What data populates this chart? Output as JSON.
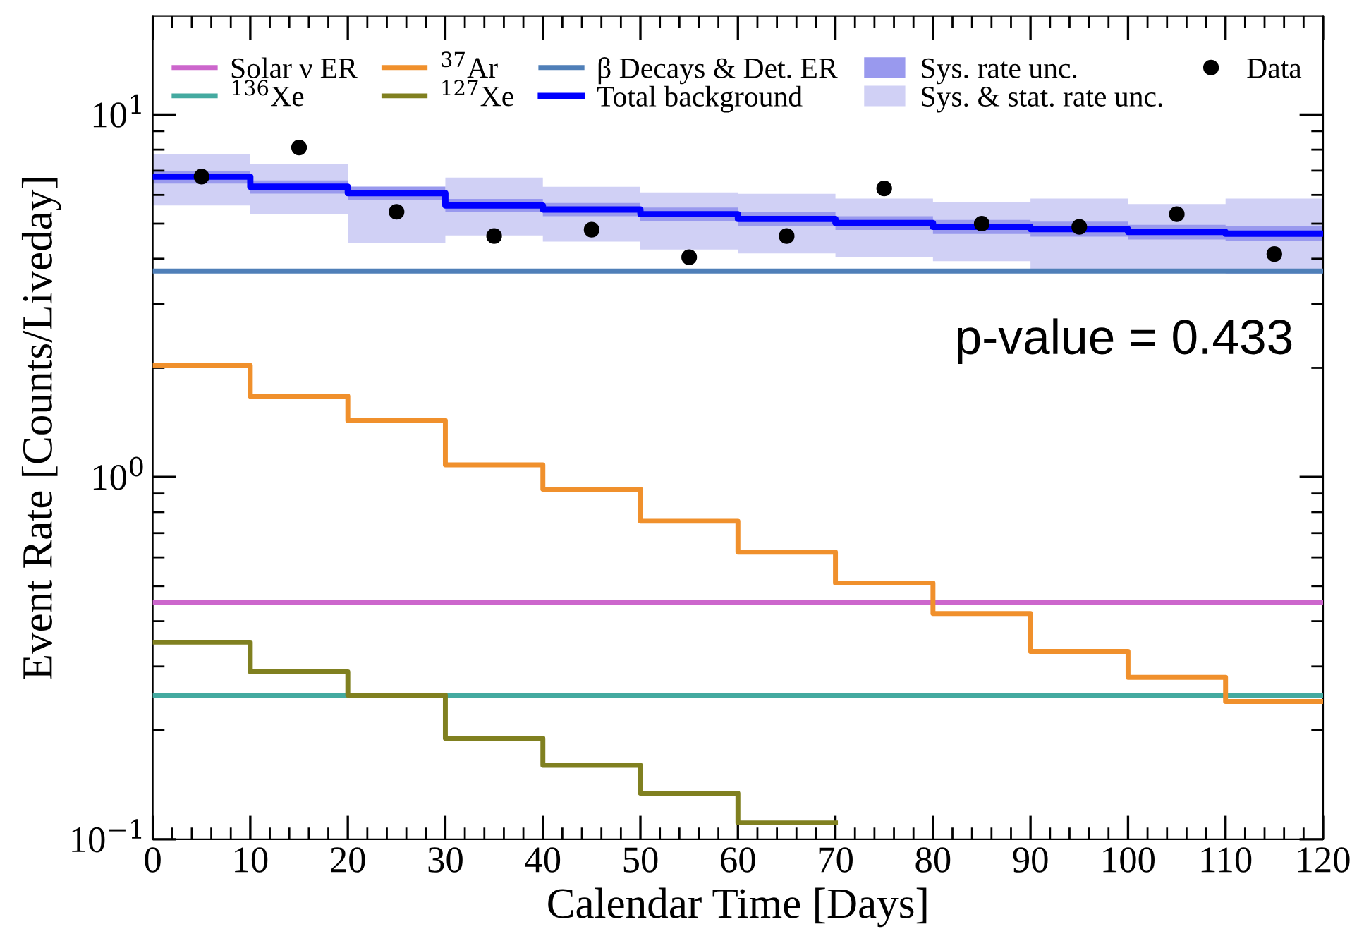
{
  "chart_data": {
    "type": "step",
    "xlabel": "Calendar Time [Days]",
    "ylabel": "Event Rate [Counts/Liveday]",
    "log": true,
    "xlim": [
      0,
      120
    ],
    "xticks": [
      0,
      10,
      20,
      30,
      40,
      50,
      60,
      70,
      80,
      90,
      100,
      110,
      120
    ],
    "ylim": [
      0.1,
      18.7
    ],
    "yticks": [
      {
        "value": 0.1,
        "label": "10$^{−1}$"
      },
      {
        "value": 1,
        "label": "10$^{0}$"
      },
      {
        "value": 10,
        "label": "10$^{1}$"
      }
    ],
    "legend": "top",
    "grid": false,
    "annotations": [
      "p-value = 0.433"
    ],
    "series": [
      {
        "name": "Solar ν ER",
        "type": "line",
        "color": "#cc66cc",
        "x": [
          0,
          120
        ],
        "values": [
          0.45,
          0.45
        ]
      },
      {
        "name": "$^{136}$Xe",
        "type": "line",
        "color": "#44aaa0",
        "x": [
          0,
          120
        ],
        "values": [
          0.25,
          0.25
        ]
      },
      {
        "name": "$^{37}$Ar",
        "type": "step",
        "color": "#f0902c",
        "x": [
          0,
          10,
          20,
          30,
          40,
          50,
          60,
          70,
          80,
          90,
          100,
          110,
          120
        ],
        "values": [
          2.03,
          1.67,
          1.43,
          1.08,
          0.925,
          0.755,
          0.62,
          0.51,
          0.42,
          0.33,
          0.28,
          0.24,
          0.24
        ]
      },
      {
        "name": "$^{127}$Xe",
        "type": "step",
        "color": "#808020",
        "x": [
          0,
          10,
          20,
          30,
          40,
          50,
          60,
          70
        ],
        "values": [
          0.35,
          0.29,
          0.25,
          0.19,
          0.16,
          0.134,
          0.111,
          0.111
        ]
      },
      {
        "name": "β Decays & Det. ER",
        "type": "line",
        "color": "#4f7fb8",
        "x": [
          0,
          120
        ],
        "values": [
          3.7,
          3.7
        ]
      },
      {
        "name": "Total background",
        "color": "#0000ff",
        "x": [
          0,
          10,
          20,
          30,
          40,
          50,
          60,
          70,
          80,
          90,
          100,
          110,
          120
        ],
        "values": [
          6.74,
          6.32,
          6.07,
          5.61,
          5.47,
          5.31,
          5.15,
          5.02,
          4.9,
          4.83,
          4.74,
          4.69,
          4.69
        ]
      },
      {
        "name": "Sys. rate unc.",
        "type": "step",
        "color": "#9999ee",
        "x": [
          0,
          10,
          20,
          30,
          40,
          50,
          60,
          70,
          80,
          90,
          100,
          110,
          120
        ],
        "values": [
          null,
          null,
          null,
          null,
          null,
          null,
          null,
          null,
          null,
          null,
          null,
          null,
          null
        ],
        "lower": [
          6.45,
          6.05,
          5.8,
          5.37,
          5.24,
          5.08,
          4.93,
          4.8,
          4.68,
          4.6,
          4.52,
          4.47,
          4.47
        ],
        "upper": [
          7.0,
          6.58,
          6.33,
          5.85,
          5.7,
          5.54,
          5.37,
          5.24,
          5.12,
          5.06,
          4.96,
          4.91,
          4.91
        ]
      },
      {
        "name": "Sys. & stat. rate unc.",
        "type": "step",
        "color": "#d0d0f5",
        "x": [
          0,
          10,
          20,
          30,
          40,
          50,
          60,
          70,
          80,
          90,
          100,
          110,
          120
        ],
        "values": [
          null,
          null,
          null,
          null,
          null,
          null,
          null,
          null,
          null,
          null,
          null,
          null,
          null
        ],
        "lower": [
          5.61,
          5.31,
          4.42,
          4.64,
          4.46,
          4.24,
          4.14,
          4.04,
          3.94,
          3.71,
          3.71,
          3.62,
          3.62
        ],
        "upper": [
          7.79,
          7.3,
          6.2,
          6.7,
          6.32,
          6.1,
          6.04,
          5.86,
          5.73,
          5.86,
          5.66,
          5.86,
          5.86
        ]
      },
      {
        "name": "Data",
        "type": "scatter",
        "color": "#000000",
        "marker": "circle",
        "x": [
          5,
          15,
          25,
          35,
          45,
          55,
          65,
          75,
          85,
          95,
          105,
          115
        ],
        "values": [
          6.74,
          8.11,
          5.39,
          4.62,
          4.81,
          4.04,
          4.62,
          6.25,
          5.0,
          4.9,
          5.31,
          4.12
        ]
      }
    ]
  }
}
